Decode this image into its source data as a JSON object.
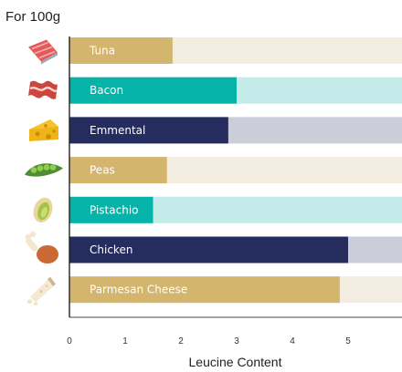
{
  "note": "For 100g",
  "chart_data": {
    "type": "bar",
    "orientation": "horizontal",
    "categories": [
      "Tuna",
      "Bacon",
      "Emmental",
      "Peas",
      "Pistachio",
      "Chicken",
      "Parmesan Cheese"
    ],
    "values": [
      1.85,
      3.0,
      2.85,
      1.75,
      1.5,
      5.0,
      4.85
    ],
    "icons": [
      "tuna-steak-icon",
      "bacon-icon",
      "emmental-cheese-icon",
      "pea-pod-icon",
      "pistachio-icon",
      "chicken-drumstick-icon",
      "parmesan-cheese-icon"
    ],
    "bar_colors": [
      "#d3b56e",
      "#05b3a9",
      "#252c5e",
      "#d3b56e",
      "#05b3a9",
      "#252c5e",
      "#d3b56e"
    ],
    "track_colors": [
      "#f3ece0",
      "#c3ebe9",
      "#cbcdd8",
      "#f3ece0",
      "#c3ebe9",
      "#cbcdd8",
      "#f3ece0"
    ],
    "xlabel": "Leucine Content",
    "ylabel": "",
    "xticks": [
      0,
      1,
      2,
      3,
      4,
      5
    ],
    "xlim": [
      0,
      6
    ],
    "grid": false,
    "legend": "none"
  }
}
